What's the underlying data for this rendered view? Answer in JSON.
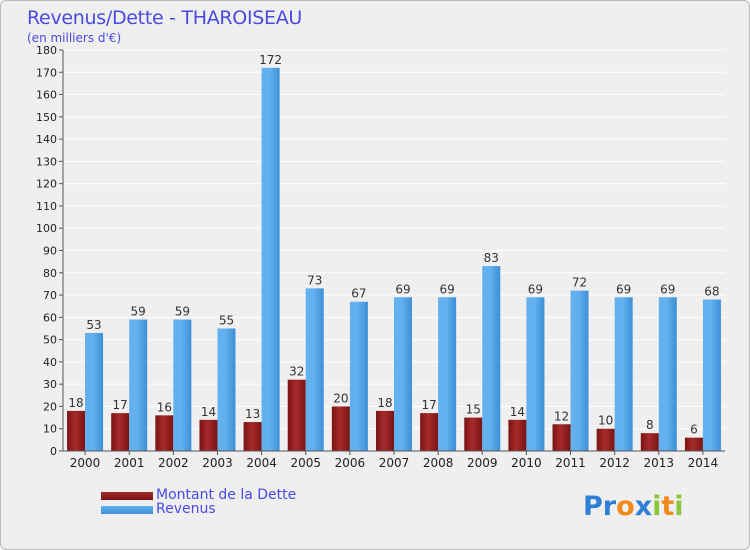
{
  "title": "Revenus/Dette - THAROISEAU",
  "subtitle": "(en milliers d'€)",
  "colors": {
    "debt": "#7a1414",
    "debt_light": "#a62a2a",
    "revenue": "#3c8fd8",
    "revenue_light": "#62b0ee",
    "text": "#4a4ae0"
  },
  "chart_data": {
    "type": "bar",
    "title": "Revenus/Dette - THAROISEAU",
    "subtitle": "(en milliers d'€)",
    "xlabel": "",
    "ylabel": "",
    "ylim": [
      0,
      180
    ],
    "yticks": [
      0,
      10,
      20,
      30,
      40,
      50,
      60,
      70,
      80,
      90,
      100,
      110,
      120,
      130,
      140,
      150,
      160,
      170,
      180
    ],
    "grid": true,
    "legend_position": "bottom-left",
    "categories": [
      "2000",
      "2001",
      "2002",
      "2003",
      "2004",
      "2005",
      "2006",
      "2007",
      "2008",
      "2009",
      "2010",
      "2011",
      "2012",
      "2013",
      "2014"
    ],
    "series": [
      {
        "name": "Montant de la Dette",
        "values": [
          18,
          17,
          16,
          14,
          13,
          32,
          20,
          18,
          17,
          15,
          14,
          12,
          10,
          8,
          6
        ]
      },
      {
        "name": "Revenus",
        "values": [
          53,
          59,
          59,
          55,
          172,
          73,
          67,
          69,
          69,
          83,
          69,
          72,
          69,
          69,
          68
        ]
      }
    ]
  },
  "legend": {
    "debt_label": "Montant de la Dette",
    "revenue_label": "Revenus"
  },
  "logo": {
    "letters": [
      "P",
      "r",
      "o",
      "x",
      "i",
      "t",
      "i"
    ],
    "colors": [
      "#2f7fd6",
      "#2f7fd6",
      "#f08a1c",
      "#2f7fd6",
      "#8cc63f",
      "#f08a1c",
      "#8cc63f"
    ]
  }
}
